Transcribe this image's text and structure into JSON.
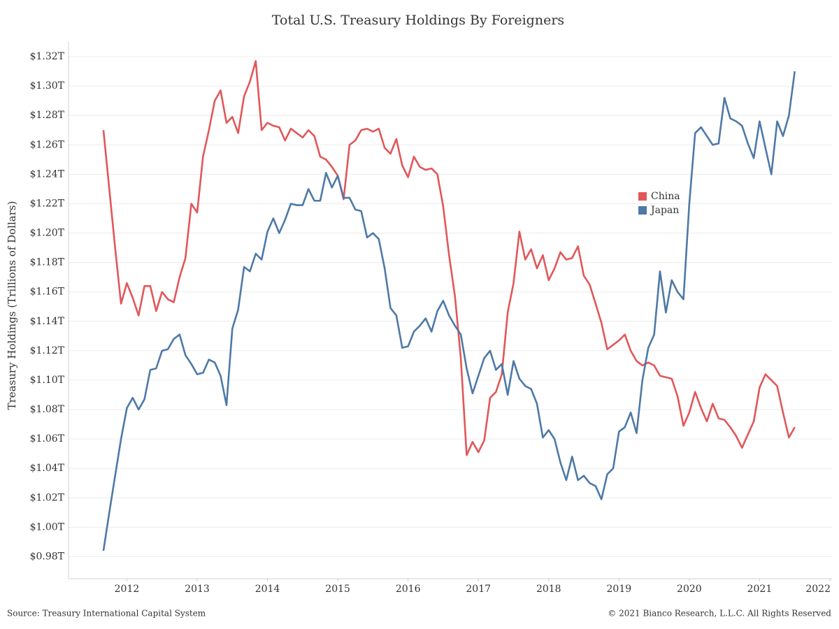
{
  "chart_data": {
    "type": "line",
    "title": "Total U.S. Treasury Holdings By Foreigners",
    "y_label": "Treasury Holdings (Trillions of Dollars)",
    "source": "Source: Treasury International Capital System",
    "copyright": "© 2021 Bianco Research, L.L.C. All Rights Reserved",
    "legend_position": "center-right",
    "grid": true,
    "x": [
      2011.667,
      2011.75,
      2011.833,
      2011.917,
      2012,
      2012.083,
      2012.167,
      2012.25,
      2012.333,
      2012.417,
      2012.5,
      2012.583,
      2012.667,
      2012.75,
      2012.833,
      2012.917,
      2013,
      2013.083,
      2013.167,
      2013.25,
      2013.333,
      2013.417,
      2013.5,
      2013.583,
      2013.667,
      2013.75,
      2013.833,
      2013.917,
      2014,
      2014.083,
      2014.167,
      2014.25,
      2014.333,
      2014.417,
      2014.5,
      2014.583,
      2014.667,
      2014.75,
      2014.833,
      2014.917,
      2015,
      2015.083,
      2015.167,
      2015.25,
      2015.333,
      2015.417,
      2015.5,
      2015.583,
      2015.667,
      2015.75,
      2015.833,
      2015.917,
      2016,
      2016.083,
      2016.167,
      2016.25,
      2016.333,
      2016.417,
      2016.5,
      2016.583,
      2016.667,
      2016.75,
      2016.833,
      2016.917,
      2017,
      2017.083,
      2017.167,
      2017.25,
      2017.333,
      2017.417,
      2017.5,
      2017.583,
      2017.667,
      2017.75,
      2017.833,
      2017.917,
      2018,
      2018.083,
      2018.167,
      2018.25,
      2018.333,
      2018.417,
      2018.5,
      2018.583,
      2018.667,
      2018.75,
      2018.833,
      2018.917,
      2019,
      2019.083,
      2019.167,
      2019.25,
      2019.333,
      2019.417,
      2019.5,
      2019.583,
      2019.667,
      2019.75,
      2019.833,
      2019.917,
      2020,
      2020.083,
      2020.167,
      2020.25,
      2020.333,
      2020.417,
      2020.5,
      2020.583,
      2020.667,
      2020.75,
      2020.833,
      2020.917,
      2021,
      2021.083,
      2021.167,
      2021.25,
      2021.333,
      2021.417,
      2021.5
    ],
    "series": [
      {
        "name": "China",
        "color": "#e15759",
        "values": [
          1.27,
          1.23,
          1.19,
          1.152,
          1.166,
          1.156,
          1.144,
          1.164,
          1.164,
          1.147,
          1.16,
          1.155,
          1.153,
          1.17,
          1.183,
          1.22,
          1.214,
          1.252,
          1.27,
          1.29,
          1.297,
          1.275,
          1.279,
          1.268,
          1.293,
          1.303,
          1.317,
          1.27,
          1.275,
          1.273,
          1.272,
          1.263,
          1.271,
          1.268,
          1.265,
          1.27,
          1.266,
          1.252,
          1.25,
          1.245,
          1.239,
          1.223,
          1.26,
          1.263,
          1.27,
          1.271,
          1.269,
          1.271,
          1.258,
          1.254,
          1.264,
          1.246,
          1.238,
          1.252,
          1.245,
          1.243,
          1.244,
          1.24,
          1.218,
          1.185,
          1.157,
          1.115,
          1.049,
          1.058,
          1.051,
          1.059,
          1.088,
          1.092,
          1.104,
          1.146,
          1.166,
          1.201,
          1.182,
          1.189,
          1.176,
          1.185,
          1.168,
          1.176,
          1.187,
          1.182,
          1.183,
          1.191,
          1.171,
          1.165,
          1.152,
          1.139,
          1.121,
          1.124,
          1.127,
          1.131,
          1.12,
          1.113,
          1.11,
          1.112,
          1.11,
          1.103,
          1.102,
          1.101,
          1.089,
          1.069,
          1.078,
          1.092,
          1.081,
          1.072,
          1.084,
          1.074,
          1.073,
          1.068,
          1.062,
          1.054,
          1.063,
          1.072,
          1.095,
          1.104,
          1.1,
          1.096,
          1.078,
          1.061,
          1.068
        ]
      },
      {
        "name": "Japan",
        "color": "#4e79a7",
        "values": [
          0.984,
          1.01,
          1.035,
          1.06,
          1.081,
          1.088,
          1.08,
          1.087,
          1.107,
          1.108,
          1.12,
          1.121,
          1.128,
          1.131,
          1.117,
          1.111,
          1.104,
          1.105,
          1.114,
          1.112,
          1.103,
          1.083,
          1.135,
          1.148,
          1.177,
          1.174,
          1.186,
          1.182,
          1.201,
          1.21,
          1.2,
          1.209,
          1.22,
          1.219,
          1.219,
          1.23,
          1.222,
          1.222,
          1.241,
          1.231,
          1.239,
          1.224,
          1.224,
          1.216,
          1.215,
          1.197,
          1.2,
          1.196,
          1.176,
          1.149,
          1.144,
          1.122,
          1.123,
          1.133,
          1.137,
          1.142,
          1.133,
          1.147,
          1.154,
          1.144,
          1.137,
          1.131,
          1.108,
          1.091,
          1.103,
          1.115,
          1.12,
          1.107,
          1.111,
          1.09,
          1.113,
          1.101,
          1.096,
          1.094,
          1.084,
          1.061,
          1.066,
          1.06,
          1.044,
          1.032,
          1.048,
          1.032,
          1.035,
          1.03,
          1.028,
          1.019,
          1.036,
          1.04,
          1.065,
          1.068,
          1.078,
          1.064,
          1.1,
          1.122,
          1.131,
          1.174,
          1.146,
          1.168,
          1.16,
          1.155,
          1.22,
          1.268,
          1.272,
          1.266,
          1.26,
          1.261,
          1.292,
          1.278,
          1.276,
          1.273,
          1.261,
          1.251,
          1.276,
          1.258,
          1.24,
          1.276,
          1.266,
          1.28,
          1.31
        ]
      }
    ],
    "xlim": [
      2011.17,
      2022.03
    ],
    "xticks": [
      2012,
      2013,
      2014,
      2015,
      2016,
      2017,
      2018,
      2019,
      2020,
      2021,
      2022
    ],
    "ylim": [
      0.965,
      1.33
    ],
    "yticks": [
      {
        "value": 0.98,
        "label": "$0.98T"
      },
      {
        "value": 1.0,
        "label": "$1.00T"
      },
      {
        "value": 1.02,
        "label": "$1.02T"
      },
      {
        "value": 1.04,
        "label": "$1.04T"
      },
      {
        "value": 1.06,
        "label": "$1.06T"
      },
      {
        "value": 1.08,
        "label": "$1.08T"
      },
      {
        "value": 1.1,
        "label": "$1.10T"
      },
      {
        "value": 1.12,
        "label": "$1.12T"
      },
      {
        "value": 1.14,
        "label": "$1.14T"
      },
      {
        "value": 1.16,
        "label": "$1.16T"
      },
      {
        "value": 1.18,
        "label": "$1.18T"
      },
      {
        "value": 1.2,
        "label": "$1.20T"
      },
      {
        "value": 1.22,
        "label": "$1.22T"
      },
      {
        "value": 1.24,
        "label": "$1.24T"
      },
      {
        "value": 1.26,
        "label": "$1.26T"
      },
      {
        "value": 1.28,
        "label": "$1.28T"
      },
      {
        "value": 1.3,
        "label": "$1.30T"
      },
      {
        "value": 1.32,
        "label": "$1.32T"
      }
    ]
  }
}
